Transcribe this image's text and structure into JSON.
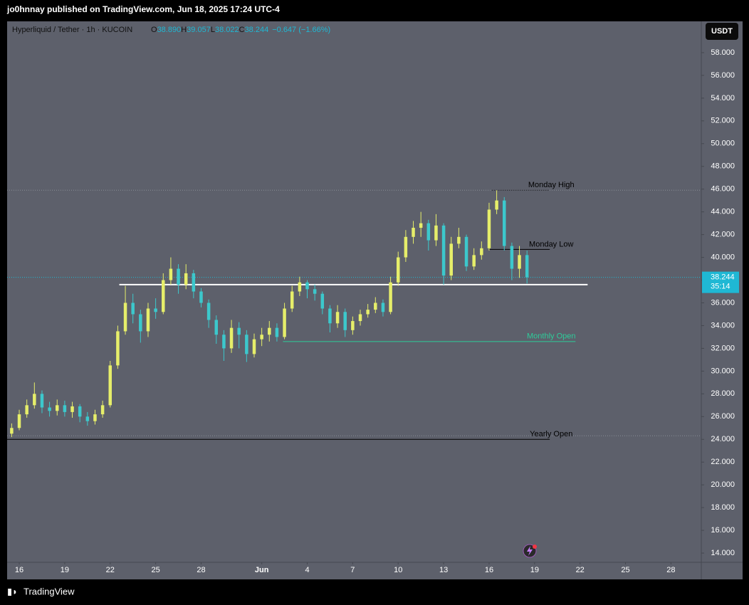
{
  "chart_data": {
    "type": "candlestick",
    "publisher": "jo0hnnay published on TradingView.com, Jun 18, 2025 17:24 UTC-4",
    "title": "Hyperliquid / Tether · 1h · KUCOIN",
    "legend": [
      {
        "label": "O",
        "value": "38.890"
      },
      {
        "label": "H",
        "value": "39.057"
      },
      {
        "label": "L",
        "value": "38.022"
      },
      {
        "label": "C",
        "value": "38.244"
      }
    ],
    "change": "−0.647 (−1.66%)",
    "currency": "USDT",
    "brand": "TradingView",
    "up_color": "#e6ee6a",
    "down_color": "#3cc8cc",
    "x": [
      -0.5,
      0,
      0.5,
      1,
      1.5,
      2,
      2.5,
      3,
      3.5,
      4,
      4.5,
      5,
      5.5,
      6,
      6.5,
      7,
      7.5,
      8,
      8.5,
      9,
      9.5,
      10,
      10.5,
      11,
      11.5,
      12,
      12.5,
      13,
      13.5,
      14,
      14.5,
      15,
      15.5,
      16,
      16.5,
      17,
      17.5,
      18,
      18.5,
      19,
      19.5,
      20,
      20.5,
      21,
      21.5,
      22,
      22.5,
      23,
      23.5,
      24,
      24.5,
      25,
      25.5,
      26,
      26.5,
      27,
      27.5,
      28,
      28.5,
      29,
      29.5,
      30,
      30.5,
      31,
      31.5,
      32,
      32.5,
      33,
      33.5
    ],
    "open": [
      24.5,
      25.0,
      26.2,
      27.0,
      28.0,
      26.8,
      26.5,
      27.0,
      26.4,
      26.9,
      26.0,
      25.6,
      26.2,
      27.0,
      30.5,
      33.5,
      36.0,
      35.0,
      33.5,
      35.5,
      35.2,
      38.0,
      39.0,
      37.6,
      38.6,
      37.0,
      36.0,
      34.5,
      33.2,
      32.0,
      33.8,
      33.2,
      31.5,
      32.8,
      33.2,
      33.8,
      33.0,
      35.5,
      37.0,
      37.8,
      37.2,
      36.8,
      35.5,
      34.2,
      35.2,
      33.6,
      34.4,
      35.0,
      35.4,
      36.0,
      35.2,
      37.8,
      40.0,
      41.8,
      42.6,
      43.0,
      41.5,
      42.8,
      38.4,
      41.2,
      41.8,
      39.2,
      40.2,
      40.8,
      44.2,
      45.0,
      41.0,
      39.0,
      40.2
    ],
    "high": [
      25.4,
      26.6,
      27.5,
      29.0,
      28.3,
      27.3,
      27.5,
      27.4,
      27.3,
      27.1,
      26.4,
      26.6,
      27.4,
      30.9,
      34.0,
      37.5,
      36.8,
      35.4,
      36.0,
      36.4,
      38.6,
      40.0,
      39.4,
      39.4,
      38.9,
      37.3,
      36.3,
      34.9,
      33.6,
      34.5,
      34.3,
      33.6,
      33.3,
      33.8,
      34.4,
      34.2,
      36.0,
      37.5,
      38.3,
      38.0,
      37.6,
      37.0,
      35.8,
      35.8,
      35.5,
      34.8,
      35.4,
      35.9,
      36.5,
      36.3,
      38.3,
      40.5,
      42.4,
      43.2,
      44.0,
      43.3,
      43.8,
      43.0,
      41.8,
      42.6,
      42.0,
      40.8,
      41.4,
      44.8,
      45.9,
      45.3,
      41.3,
      41.0,
      40.6
    ],
    "low": [
      24.2,
      24.8,
      25.9,
      26.7,
      26.3,
      26.0,
      26.1,
      26.0,
      25.9,
      25.5,
      25.2,
      25.3,
      25.9,
      26.8,
      30.2,
      33.2,
      34.2,
      32.5,
      33.0,
      34.6,
      35.0,
      37.6,
      36.8,
      37.2,
      36.4,
      35.6,
      33.8,
      32.4,
      30.9,
      31.6,
      32.0,
      30.8,
      31.2,
      32.2,
      32.6,
      32.6,
      32.8,
      35.2,
      36.6,
      36.4,
      36.2,
      35.0,
      33.4,
      33.8,
      33.0,
      33.2,
      34.0,
      34.7,
      35.1,
      34.8,
      35.0,
      37.5,
      39.6,
      41.2,
      41.8,
      40.6,
      41.0,
      37.6,
      38.0,
      40.8,
      38.8,
      38.9,
      39.8,
      40.6,
      43.8,
      40.6,
      38.0,
      38.2,
      37.7
    ],
    "close": [
      25.0,
      26.2,
      27.0,
      28.0,
      26.8,
      26.5,
      27.0,
      26.4,
      26.9,
      26.0,
      25.6,
      26.2,
      27.0,
      30.5,
      33.5,
      36.0,
      35.0,
      33.5,
      35.5,
      35.2,
      38.0,
      39.0,
      37.6,
      38.6,
      37.0,
      36.0,
      34.5,
      33.2,
      32.0,
      33.8,
      33.2,
      31.5,
      32.8,
      33.2,
      33.8,
      33.0,
      35.5,
      37.0,
      37.8,
      37.2,
      36.8,
      35.5,
      34.2,
      35.2,
      33.6,
      34.4,
      35.0,
      35.4,
      36.0,
      35.2,
      37.8,
      40.0,
      41.8,
      42.6,
      43.0,
      41.5,
      42.8,
      38.4,
      41.2,
      41.8,
      39.2,
      40.2,
      40.8,
      44.2,
      45.0,
      41.0,
      39.0,
      40.2,
      38.244
    ],
    "last_price": 38.244,
    "last_price_color": "#1fb8d4",
    "countdown": "35:14",
    "annotations": [
      {
        "label": "Monday High",
        "value": 45.9,
        "from": 31.2,
        "to": 35.0,
        "color": "#000000",
        "style": "dotted",
        "extend": true
      },
      {
        "label": "Monday Low",
        "value": 40.7,
        "from": 31.0,
        "to": 35.0,
        "color": "#000000",
        "style": "solid"
      },
      {
        "value": 37.6,
        "from": 6.6,
        "to": 37.5,
        "color": "#ffffff",
        "style": "solid"
      },
      {
        "label": "Monthly Open",
        "value": 32.6,
        "from": 17.4,
        "to": 36.7,
        "color": "#2ecc9a",
        "style": "solid"
      },
      {
        "label": "Yearly Open",
        "value": 24.0,
        "from": -0.8,
        "to": 35.0,
        "color": "#000000",
        "style": "solid",
        "extend": true
      }
    ],
    "xlim": [
      -0.8,
      45
    ],
    "xticks": [
      {
        "value": 0,
        "label": "16"
      },
      {
        "value": 3,
        "label": "19"
      },
      {
        "value": 6,
        "label": "22"
      },
      {
        "value": 9,
        "label": "25"
      },
      {
        "value": 12,
        "label": "28"
      },
      {
        "value": 16,
        "label": "Jun"
      },
      {
        "value": 19,
        "label": "4"
      },
      {
        "value": 22,
        "label": "7"
      },
      {
        "value": 25,
        "label": "10"
      },
      {
        "value": 28,
        "label": "13"
      },
      {
        "value": 31,
        "label": "16"
      },
      {
        "value": 34,
        "label": "19"
      },
      {
        "value": 37,
        "label": "22"
      },
      {
        "value": 40,
        "label": "25"
      },
      {
        "value": 43,
        "label": "28"
      }
    ],
    "ylim": [
      13.19,
      60.75
    ],
    "yticks": [
      {
        "value": 14,
        "label": "14.000"
      },
      {
        "value": 16,
        "label": "16.000"
      },
      {
        "value": 18,
        "label": "18.000"
      },
      {
        "value": 20,
        "label": "20.000"
      },
      {
        "value": 22,
        "label": "22.000"
      },
      {
        "value": 24,
        "label": "24.000"
      },
      {
        "value": 26,
        "label": "26.000"
      },
      {
        "value": 28,
        "label": "28.000"
      },
      {
        "value": 30,
        "label": "30.000"
      },
      {
        "value": 32,
        "label": "32.000"
      },
      {
        "value": 34,
        "label": "34.000"
      },
      {
        "value": 36,
        "label": "36.000"
      },
      {
        "value": 38,
        "label": "38.000"
      },
      {
        "value": 40,
        "label": "40.000"
      },
      {
        "value": 42,
        "label": "42.000"
      },
      {
        "value": 44,
        "label": "44.000"
      },
      {
        "value": 46,
        "label": "46.000"
      },
      {
        "value": 48,
        "label": "48.000"
      },
      {
        "value": 50,
        "label": "50.000"
      },
      {
        "value": 52,
        "label": "52.000"
      },
      {
        "value": 54,
        "label": "54.000"
      },
      {
        "value": 56,
        "label": "56.000"
      },
      {
        "value": 58,
        "label": "58.000"
      }
    ],
    "grid": false
  }
}
